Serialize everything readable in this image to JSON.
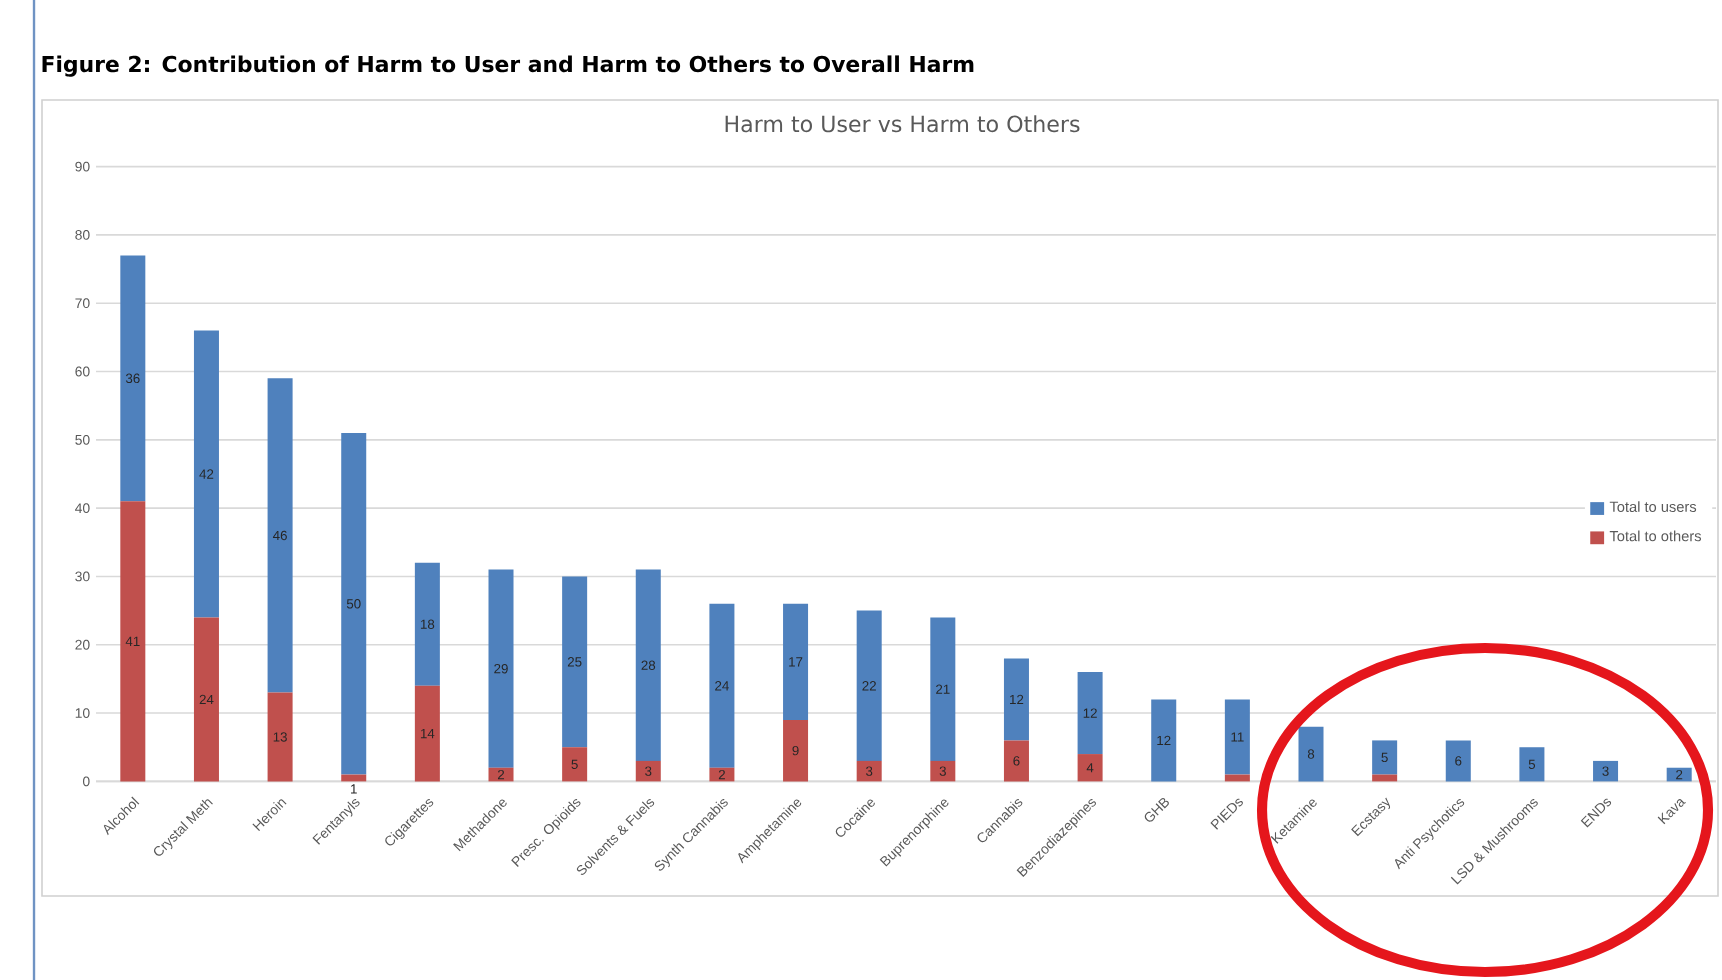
{
  "chart_data": {
    "type": "bar",
    "stacked": true,
    "title": "Figure 2: Contribution of Harm to User and Harm to Others to Overall Harm",
    "subtitle": "Harm to User vs Harm to Others",
    "categories": [
      "Alcohol",
      "Crystal Meth",
      "Heroin",
      "Fentanyls",
      "Cigarettes",
      "Methadone",
      "Presc. Opioids",
      "Solvents & Fuels",
      "Synth Cannabis",
      "Amphetamine",
      "Cocaine",
      "Buprenorphine",
      "Cannabis",
      "Benzodiazepines",
      "GHB",
      "PIEDs",
      "Ketamine",
      "Ecstasy",
      "Anti Psychotics",
      "LSD & Mushrooms",
      "ENDs",
      "Kava"
    ],
    "series": [
      {
        "name": "Total to others",
        "color": "#c0504d",
        "values": [
          41,
          24,
          13,
          1,
          14,
          2,
          5,
          3,
          2,
          9,
          3,
          3,
          6,
          4,
          0,
          1,
          0,
          1,
          0,
          0,
          0,
          0
        ],
        "value_labels": [
          "41",
          "24",
          "13",
          "1",
          "14",
          "2",
          "5",
          "3",
          "2",
          "9",
          "3",
          "3",
          "6",
          "4",
          null,
          null,
          null,
          null,
          null,
          null,
          null,
          null
        ]
      },
      {
        "name": "Total to users",
        "color": "#4f81bd",
        "values": [
          36,
          42,
          46,
          50,
          18,
          29,
          25,
          28,
          24,
          17,
          22,
          21,
          12,
          12,
          12,
          11,
          8,
          5,
          6,
          5,
          3,
          2
        ],
        "value_labels": [
          "36",
          "42",
          "46",
          "50",
          "18",
          "29",
          "25",
          "28",
          "24",
          "17",
          "22",
          "21",
          "12",
          "12",
          "12",
          "11",
          "8",
          "5",
          "6",
          "5",
          "3",
          "2"
        ]
      }
    ],
    "ylim": [
      0,
      90
    ],
    "yticks": [
      0,
      10,
      20,
      30,
      40,
      50,
      60,
      70,
      80,
      90
    ],
    "grid": "y",
    "legend": "right"
  }
}
